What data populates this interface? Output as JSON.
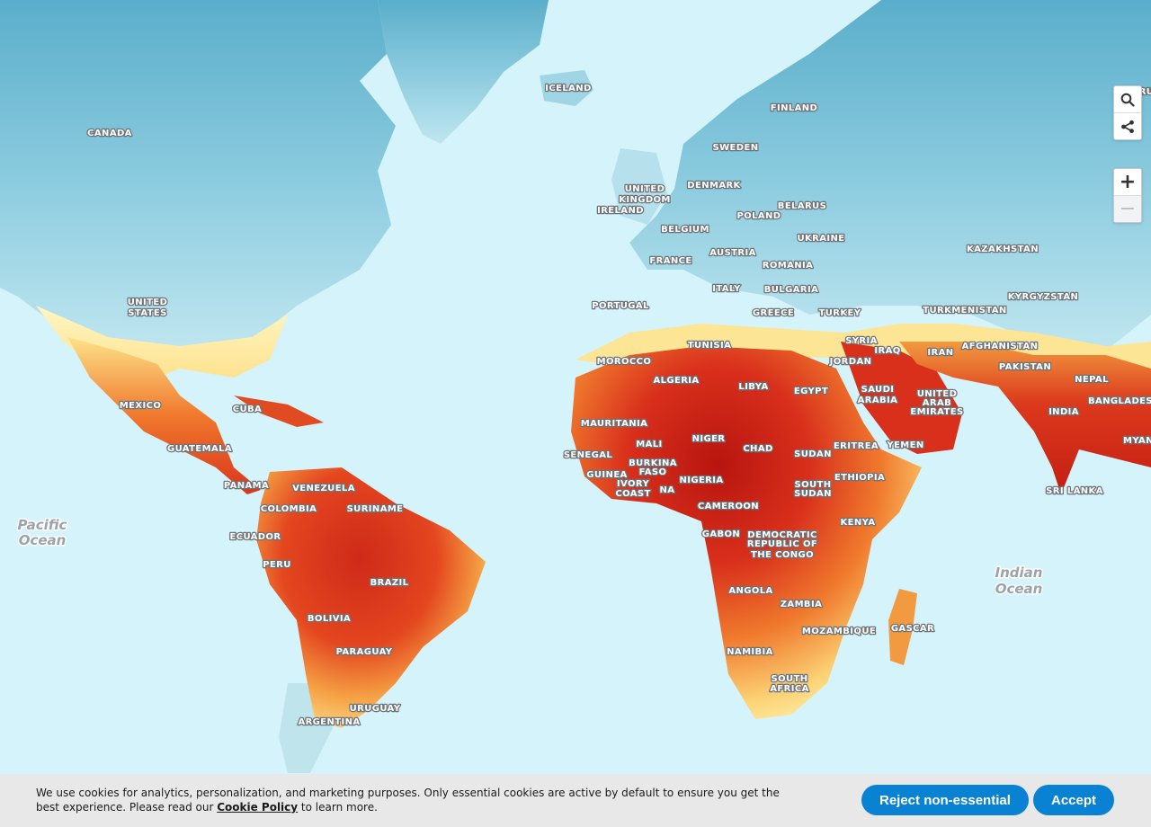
{
  "map": {
    "colors": {
      "ocean": "#d4f3fb",
      "cold_land": "#8fcde0",
      "hot_pale": "#fff3a8",
      "hot_mid": "#f57a2c",
      "hot_high": "#e0341f",
      "hot_extreme": "#b8150f"
    },
    "country_labels": [
      "CANADA",
      "ICELAND",
      "FINLAND",
      "SWEDEN",
      "UNITED",
      "KINGDOM",
      "IRELAND",
      "DENMARK",
      "BELARUS",
      "POLAND",
      "BELGIUM",
      "UKRAINE",
      "FRANCE",
      "AUSTRIA",
      "ROMANIA",
      "KAZAKHSTAN",
      "ITALY",
      "BULGARIA",
      "UNITED",
      "STATES",
      "PORTUGAL",
      "GREECE",
      "TURKEY",
      "TURKMENISTAN",
      "KYRGYZSTAN",
      "TUNISIA",
      "SYRIA",
      "IRAQ",
      "IRAN",
      "AFGHANISTAN",
      "MOROCCO",
      "JORDAN",
      "PAKISTAN",
      "ALGERIA",
      "LIBYA",
      "EGYPT",
      "SAUDI",
      "ARABIA",
      "UNITED",
      "ARAB",
      "EMIRATES",
      "NEPAL",
      "MEXICO",
      "CUBA",
      "MAURITANIA",
      "INDIA",
      "BANGLADES",
      "MALI",
      "NIGER",
      "CHAD",
      "ERITREA",
      "YEMEN",
      "GUATEMALA",
      "SENEGAL",
      "BURKINA",
      "FASO",
      "SUDAN",
      "GUINEA",
      "IVORY",
      "COAST",
      "NIGERIA",
      "ETHIOPIA",
      "PANAMA",
      "VENEZUELA",
      "SOUTH",
      "SUDAN",
      "COLOMBIA",
      "SURINAME",
      "SRI LANKA",
      "CAMEROON",
      "KENYA",
      "ECUADOR",
      "GABON",
      "DEMOCRATIC",
      "REPUBLIC OF",
      "THE CONGO",
      "PERU",
      "BRAZIL",
      "ANGOLA",
      "ZAMBIA",
      "BOLIVIA",
      "MOZAMBIQUE",
      "GASCAR",
      "PARAGUAY",
      "NAMIBIA",
      "SOUTH",
      "AFRICA",
      "URUGUAY",
      "ARGENTINA",
      "MYAN",
      "NA",
      "RU"
    ],
    "ocean_labels": [
      "Pacific",
      "Ocean",
      "Indian",
      "Ocean"
    ]
  },
  "controls": {
    "search_icon": "search-icon",
    "share_icon": "share-icon",
    "zoom_in_symbol": "+",
    "zoom_out_symbol": "−"
  },
  "cookie_banner": {
    "text_before": "We use cookies for analytics, personalization, and marketing purposes. Only essential cookies are active by default to ensure you get the best experience. Please read our ",
    "link_text": "Cookie Policy",
    "text_after": " to learn more.",
    "reject_label": "Reject non-essential",
    "accept_label": "Accept"
  }
}
